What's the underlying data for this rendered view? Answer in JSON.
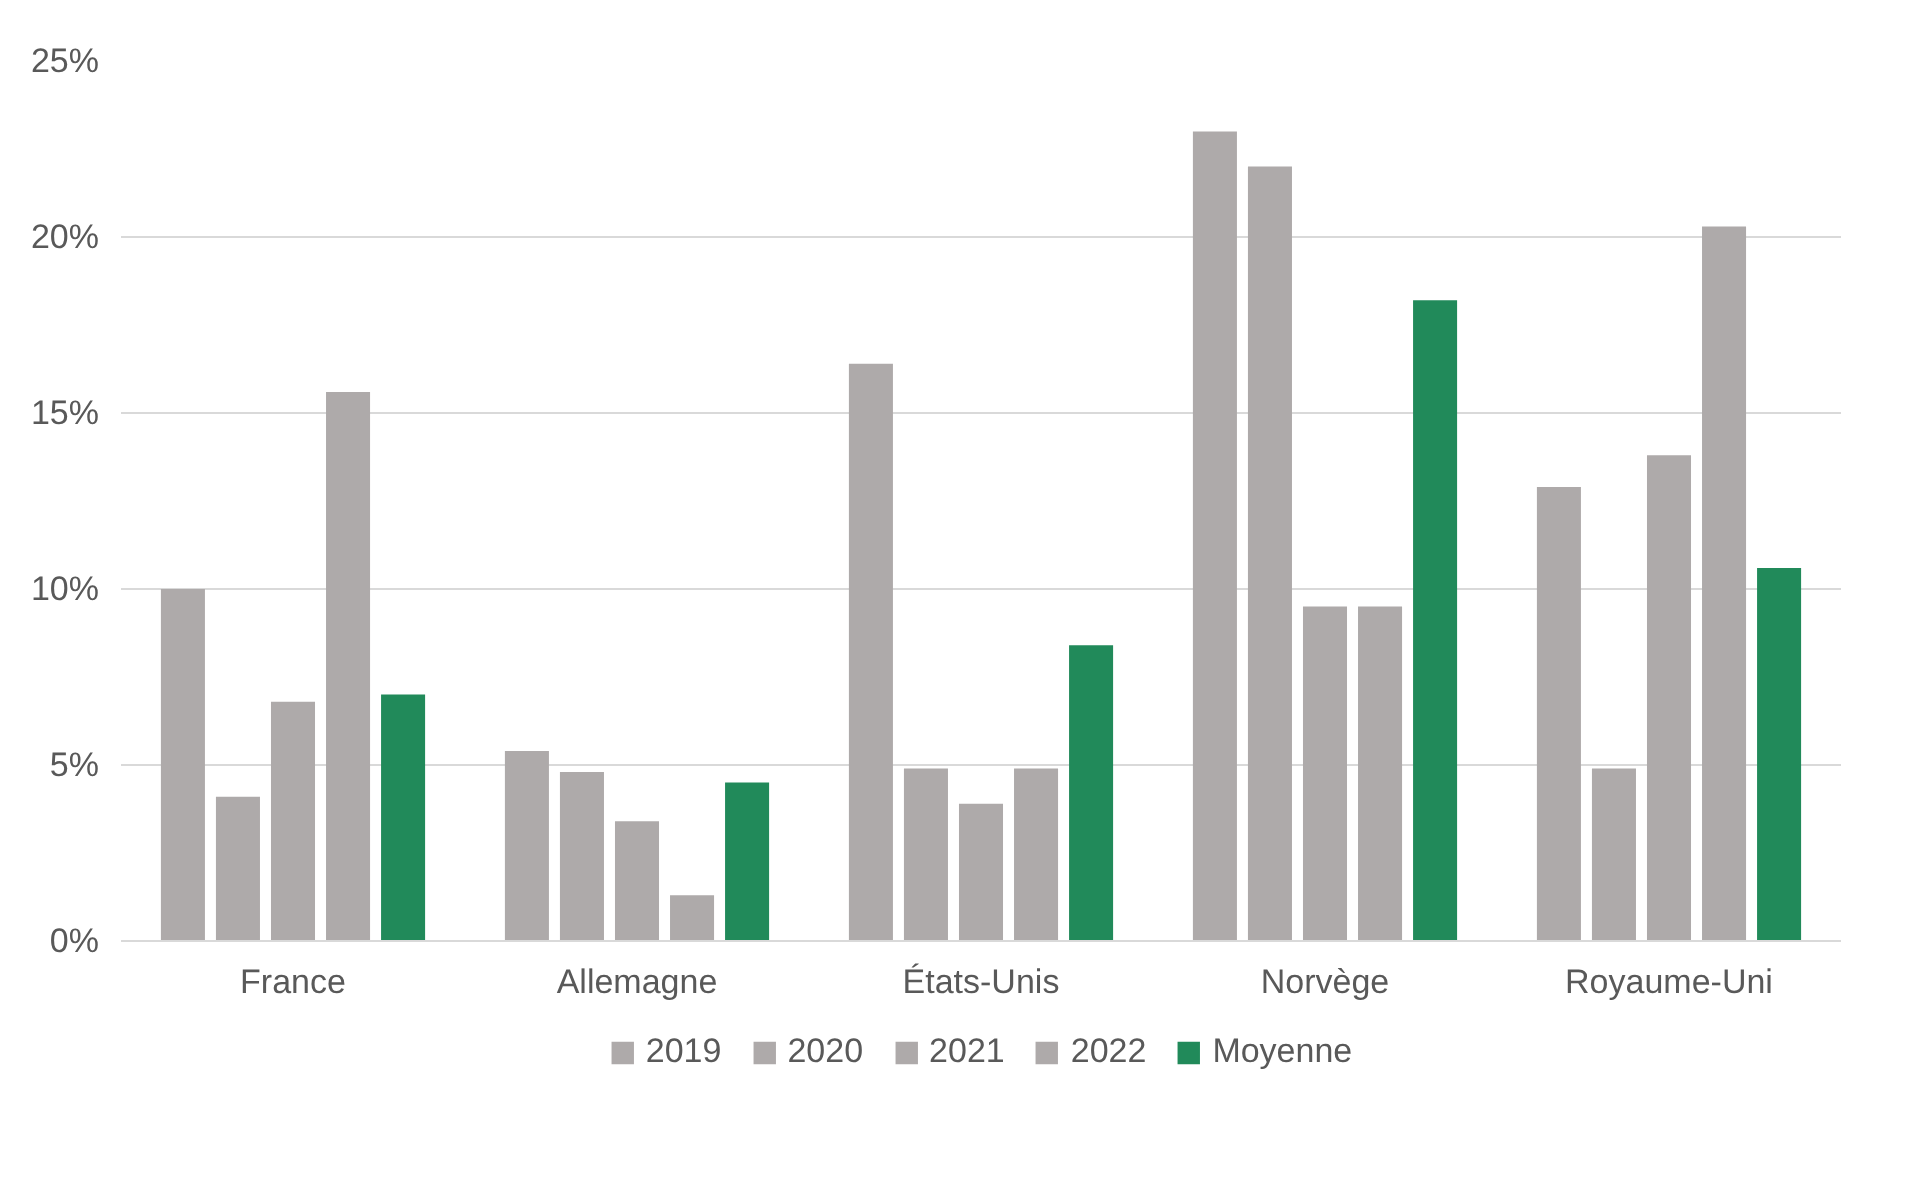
{
  "chart_data": {
    "type": "bar",
    "categories": [
      "France",
      "Allemagne",
      "États-Unis",
      "Norvège",
      "Royaume-Uni"
    ],
    "series": [
      {
        "name": "2019",
        "color": "#aeaaaa",
        "values": [
          10.0,
          5.4,
          16.4,
          23.0,
          12.9
        ]
      },
      {
        "name": "2020",
        "color": "#aeaaaa",
        "values": [
          4.1,
          4.8,
          4.9,
          22.0,
          4.9
        ]
      },
      {
        "name": "2021",
        "color": "#aeaaaa",
        "values": [
          6.8,
          3.4,
          3.9,
          9.5,
          13.8
        ]
      },
      {
        "name": "2022",
        "color": "#aeaaaa",
        "values": [
          15.6,
          1.3,
          4.9,
          9.5,
          20.3
        ]
      },
      {
        "name": "Moyenne",
        "color": "#218a5a",
        "values": [
          7.0,
          4.5,
          8.4,
          18.2,
          10.6
        ]
      }
    ],
    "ylim": [
      0,
      25
    ],
    "yticks": [
      {
        "value": 0,
        "label": "0%"
      },
      {
        "value": 5,
        "label": "5%"
      },
      {
        "value": 10,
        "label": "10%"
      },
      {
        "value": 15,
        "label": "15%"
      },
      {
        "value": 20,
        "label": "20%"
      },
      {
        "value": 25,
        "label": "25%"
      }
    ],
    "grid": "y",
    "legend": "bottom"
  }
}
